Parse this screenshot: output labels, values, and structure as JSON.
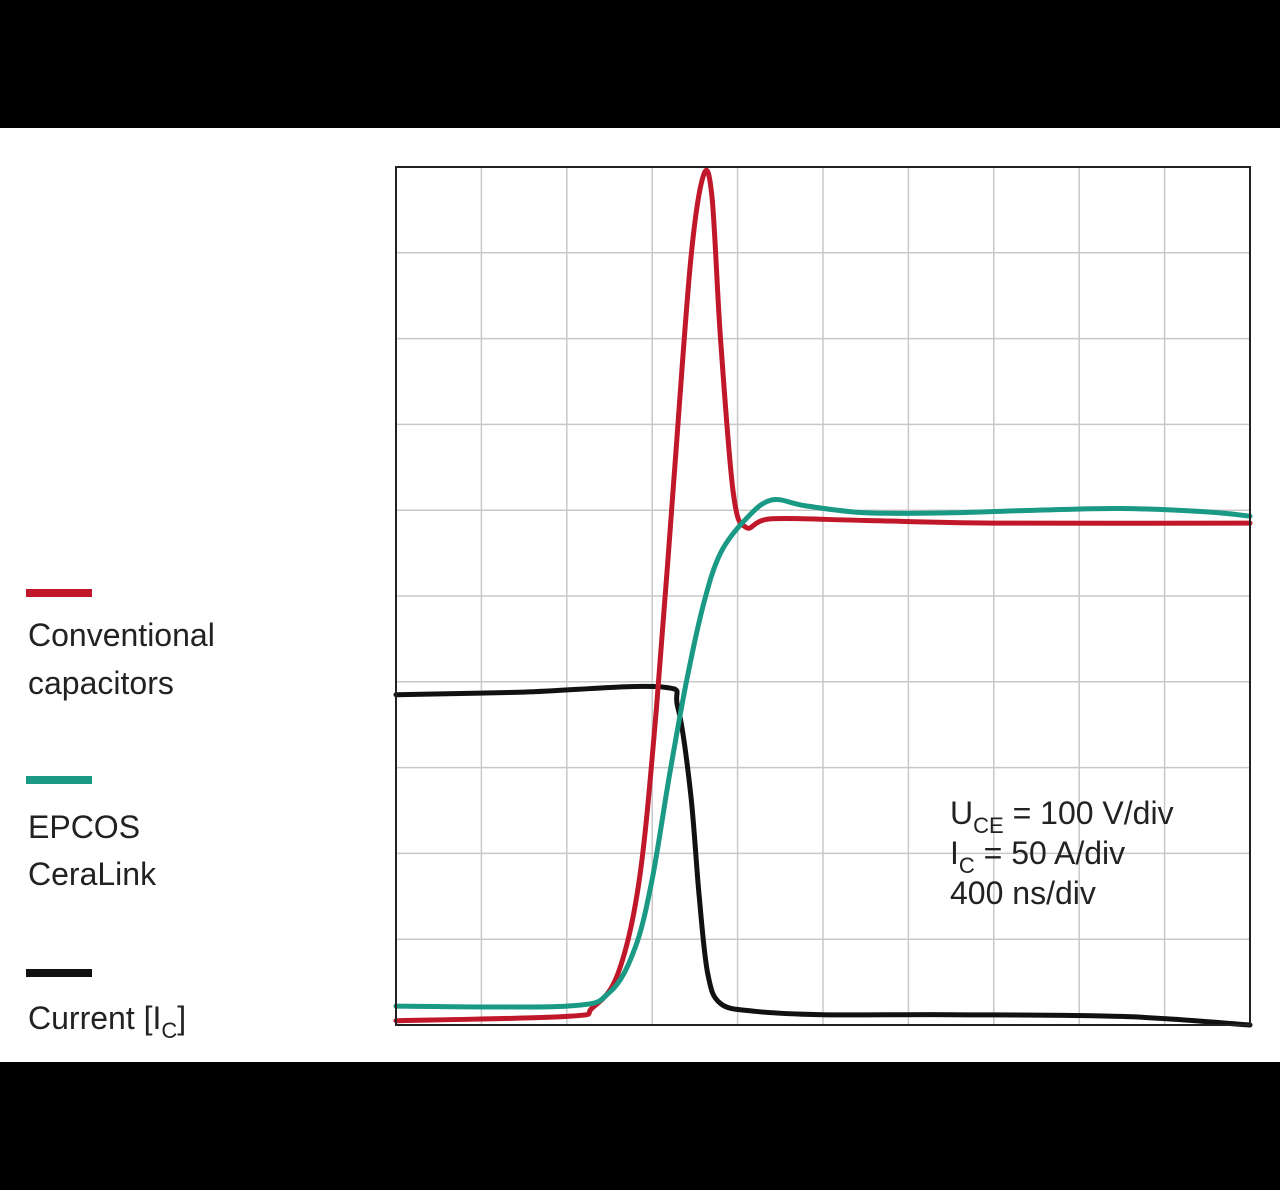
{
  "chart_data": {
    "type": "line",
    "title": "",
    "xlabel": "",
    "ylabel": "",
    "x_divisions": 10,
    "y_divisions": 10,
    "xlim": [
      0,
      10
    ],
    "ylim": [
      0,
      10
    ],
    "grid": true,
    "legend_placement": "left",
    "series": [
      {
        "name_lines": [
          "Conventional",
          "capacitors"
        ],
        "color": "#c0182a",
        "points": [
          [
            0,
            0.05
          ],
          [
            2.0,
            0.1
          ],
          [
            2.3,
            0.2
          ],
          [
            2.6,
            0.6
          ],
          [
            2.85,
            1.7
          ],
          [
            3.05,
            3.7
          ],
          [
            3.25,
            6.3
          ],
          [
            3.45,
            8.9
          ],
          [
            3.6,
            9.9
          ],
          [
            3.7,
            9.65
          ],
          [
            3.8,
            8.0
          ],
          [
            3.95,
            6.2
          ],
          [
            4.1,
            5.8
          ],
          [
            4.4,
            5.9
          ],
          [
            5.5,
            5.88
          ],
          [
            7.0,
            5.85
          ],
          [
            10.0,
            5.85
          ]
        ]
      },
      {
        "name_lines": [
          "EPCOS",
          "CeraLink"
        ],
        "color": "#1a9985",
        "points": [
          [
            0,
            0.22
          ],
          [
            2.0,
            0.22
          ],
          [
            2.5,
            0.38
          ],
          [
            2.8,
            0.9
          ],
          [
            3.0,
            1.7
          ],
          [
            3.2,
            2.9
          ],
          [
            3.4,
            4.0
          ],
          [
            3.6,
            4.9
          ],
          [
            3.8,
            5.5
          ],
          [
            4.1,
            5.9
          ],
          [
            4.4,
            6.12
          ],
          [
            4.8,
            6.05
          ],
          [
            5.5,
            5.97
          ],
          [
            6.5,
            5.97
          ],
          [
            7.5,
            6.0
          ],
          [
            8.5,
            6.02
          ],
          [
            9.5,
            5.98
          ],
          [
            10.0,
            5.93
          ]
        ]
      },
      {
        "name_lines": [
          "Current [I",
          "]"
        ],
        "name_sub": "C",
        "color": "#111111",
        "points": [
          [
            0,
            3.85
          ],
          [
            1.5,
            3.88
          ],
          [
            3.1,
            3.94
          ],
          [
            3.3,
            3.7
          ],
          [
            3.45,
            2.7
          ],
          [
            3.55,
            1.5
          ],
          [
            3.65,
            0.6
          ],
          [
            3.8,
            0.25
          ],
          [
            4.2,
            0.16
          ],
          [
            5.0,
            0.12
          ],
          [
            6.5,
            0.12
          ],
          [
            8.5,
            0.1
          ],
          [
            10.0,
            0.0
          ]
        ]
      }
    ],
    "annotation": [
      {
        "main": "U",
        "sub": "CE",
        "rest": " = 100 V/div"
      },
      {
        "main": "I",
        "sub": "C",
        "rest": " = 50 A/div"
      },
      {
        "main": "",
        "sub": "",
        "rest": "400 ns/div"
      }
    ]
  }
}
